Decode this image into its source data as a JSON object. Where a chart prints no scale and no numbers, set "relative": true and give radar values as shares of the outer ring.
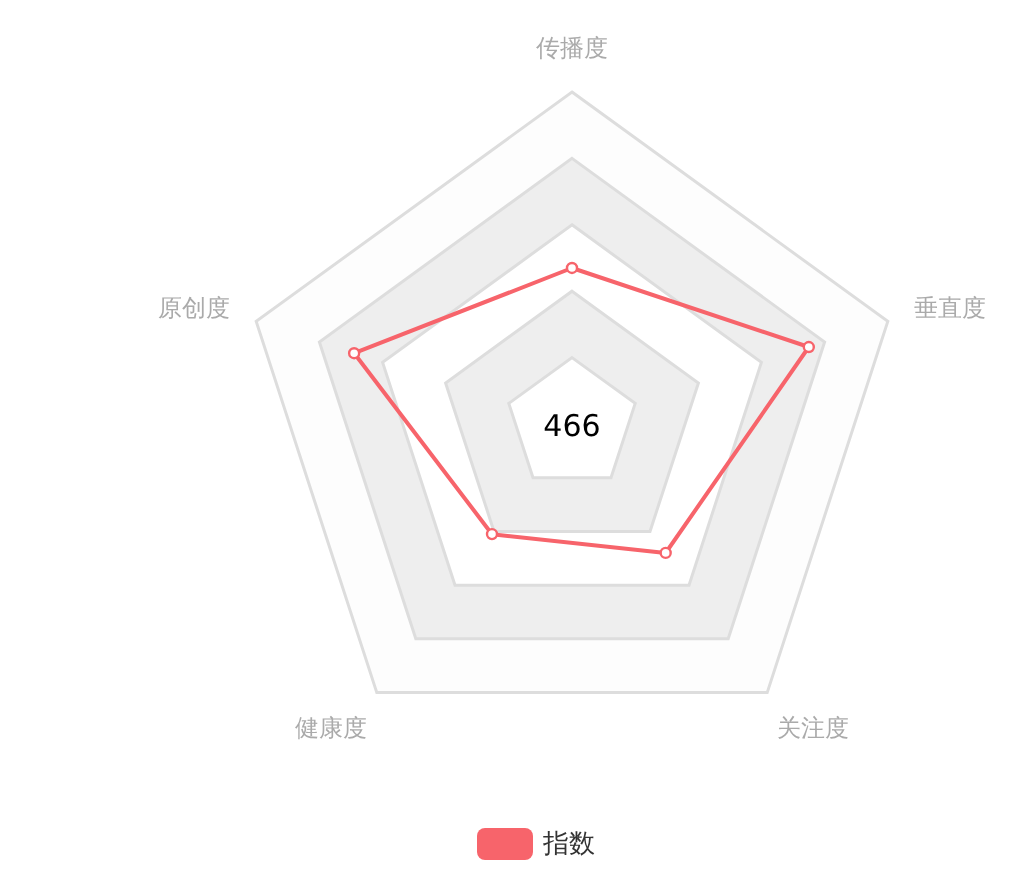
{
  "chart_data": {
    "type": "radar",
    "relative": true,
    "categories": [
      "传播度",
      "垂直度",
      "关注度",
      "健康度",
      "原创度"
    ],
    "series": [
      {
        "name": "指数",
        "color": "#f7646b",
        "values": [
          0.47,
          0.75,
          0.48,
          0.41,
          0.69
        ]
      }
    ],
    "annotations": [
      "466"
    ],
    "marker": "circle",
    "legend": "bottom"
  }
}
